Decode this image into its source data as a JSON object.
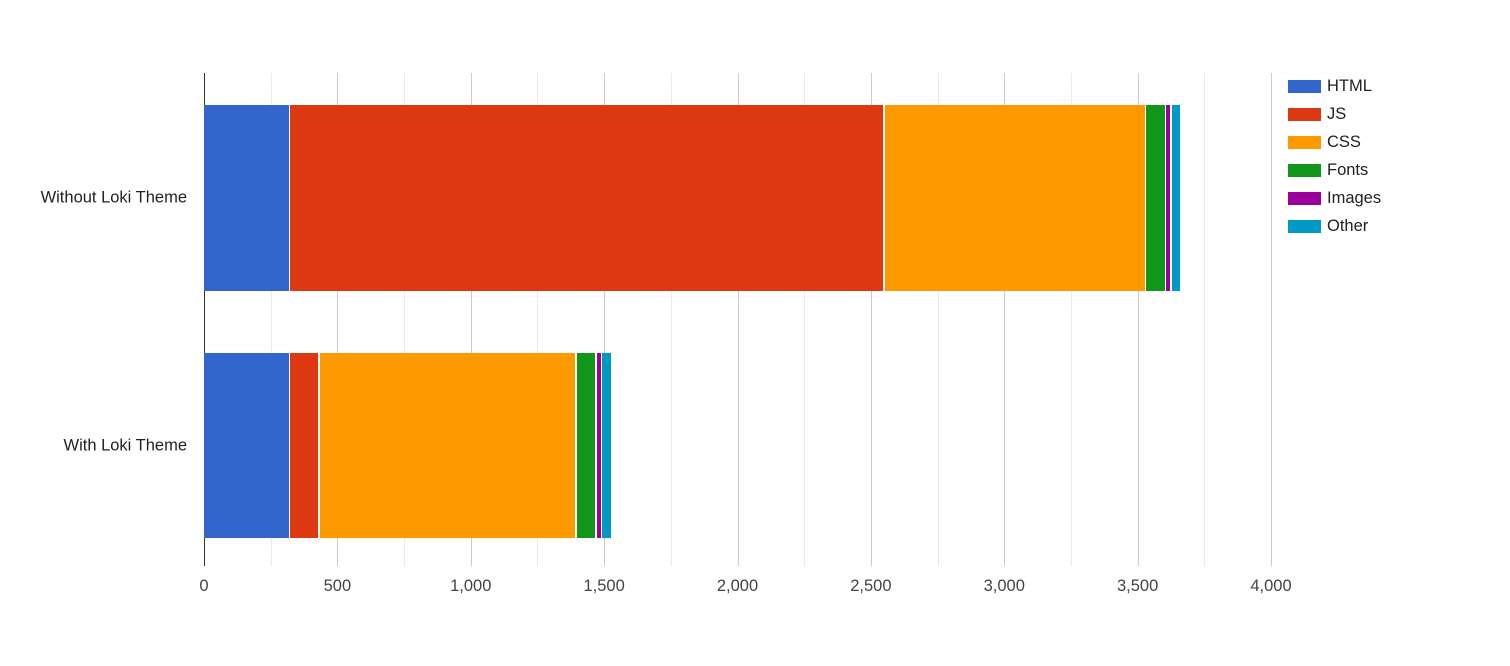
{
  "chart_data": {
    "type": "bar",
    "orientation": "horizontal",
    "stacked": true,
    "categories": [
      "Without Loki Theme",
      "With Loki Theme"
    ],
    "series": [
      {
        "name": "HTML",
        "color": "#3366CC",
        "values": [
          320,
          320
        ]
      },
      {
        "name": "JS",
        "color": "#DC3912",
        "values": [
          2230,
          110
        ]
      },
      {
        "name": "CSS",
        "color": "#FF9900",
        "values": [
          980,
          965
        ]
      },
      {
        "name": "Fonts",
        "color": "#109618",
        "values": [
          75,
          75
        ]
      },
      {
        "name": "Images",
        "color": "#990099",
        "values": [
          20,
          20
        ]
      },
      {
        "name": "Other",
        "color": "#0099C6",
        "values": [
          35,
          35
        ]
      }
    ],
    "totals": [
      3660,
      1525
    ],
    "xlim": [
      0,
      4000
    ],
    "x_tick_step": 500,
    "x_minor_tick_step": 250,
    "x_tick_labels": [
      "0",
      "500",
      "1,000",
      "1,500",
      "2,000",
      "2,500",
      "3,000",
      "3,500",
      "4,000"
    ],
    "legend_position": "right",
    "grid": true,
    "title": "",
    "xlabel": "",
    "ylabel": ""
  },
  "colors": {
    "major_gridline": "#cccccc",
    "minor_gridline": "#ebebeb",
    "baseline": "#333333",
    "axis_text": "#444444",
    "category_text": "#222222",
    "legend_text": "#222222",
    "background": "#ffffff"
  }
}
